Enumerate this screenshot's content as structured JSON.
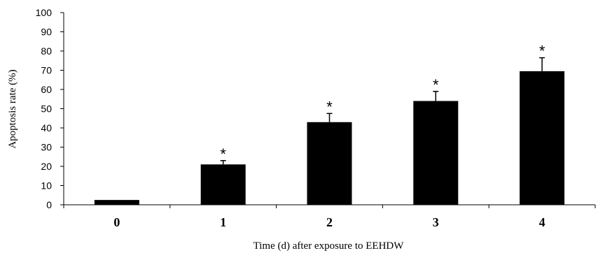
{
  "chart_data": {
    "type": "bar",
    "title": "",
    "xlabel": "Time (d) after exposure to EEHDW",
    "ylabel": "Apoptosis rate (%)",
    "ylim": [
      0,
      100
    ],
    "yticks": [
      "0",
      "10",
      "20",
      "30",
      "40",
      "50",
      "60",
      "70",
      "80",
      "90",
      "100"
    ],
    "categories": [
      "0",
      "1",
      "2",
      "3",
      "4"
    ],
    "values": [
      2.5,
      21,
      43,
      54,
      69.5
    ],
    "errors": [
      0,
      2,
      4.5,
      5,
      7
    ],
    "significance": [
      "",
      "*",
      "*",
      "*",
      "*"
    ],
    "grid": false,
    "legend": "none",
    "bar_color": "#000000"
  }
}
